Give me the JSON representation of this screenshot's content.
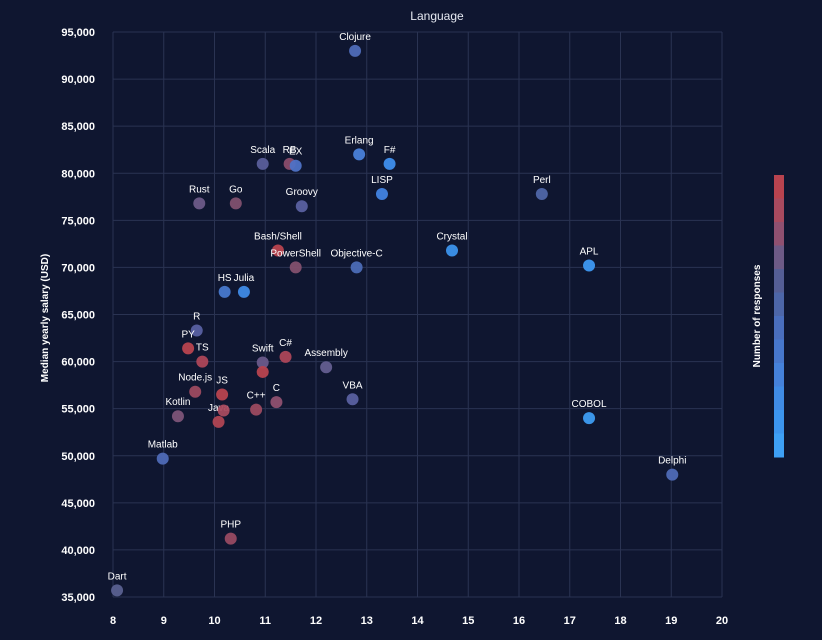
{
  "colors": {
    "background": "#0f1630",
    "grid": "#2a3352",
    "low_responses": "#3ea0f5",
    "high_responses": "#b8434f"
  },
  "chart_data": {
    "type": "scatter",
    "title": "Language",
    "ylabel": "Median yearly salary (USD)",
    "xlabel": "",
    "xlim": [
      8,
      20
    ],
    "ylim": [
      35000,
      95000
    ],
    "x_ticks": [
      "8",
      "9",
      "10",
      "11",
      "12",
      "13",
      "14",
      "15",
      "16",
      "17",
      "18",
      "19",
      "20"
    ],
    "y_ticks": [
      "35,000",
      "40,000",
      "45,000",
      "50,000",
      "55,000",
      "60,000",
      "65,000",
      "70,000",
      "75,000",
      "80,000",
      "85,000",
      "90,000",
      "95,000"
    ],
    "grid": true,
    "colorbar": {
      "label": "Number of responses",
      "colors": [
        "#b8434f",
        "#a84a5f",
        "#8f5070",
        "#6d5a86",
        "#555e95",
        "#4d66a8",
        "#4a6ebd",
        "#4777cc",
        "#4581da",
        "#408be4",
        "#3c95ee",
        "#3ea0f5"
      ]
    },
    "points": [
      {
        "label": "Clojure",
        "x": 12.77,
        "y": 93000,
        "color": "#4f6cb8"
      },
      {
        "label": "Scala",
        "x": 10.95,
        "y": 81000,
        "color": "#5a5e9a"
      },
      {
        "label": "RB",
        "x": 11.48,
        "y": 81000,
        "color": "#8a4c6c"
      },
      {
        "label": "EX",
        "x": 11.6,
        "y": 80800,
        "color": "#4f72c6"
      },
      {
        "label": "Erlang",
        "x": 12.85,
        "y": 82000,
        "color": "#4a7fd8"
      },
      {
        "label": "F#",
        "x": 13.45,
        "y": 81000,
        "color": "#3f8eec"
      },
      {
        "label": "LISP",
        "x": 13.3,
        "y": 77800,
        "color": "#4283e2"
      },
      {
        "label": "Perl",
        "x": 16.45,
        "y": 77800,
        "color": "#5066a8"
      },
      {
        "label": "Rust",
        "x": 9.7,
        "y": 76800,
        "color": "#6d5a88"
      },
      {
        "label": "Go",
        "x": 10.42,
        "y": 76800,
        "color": "#81506f"
      },
      {
        "label": "Groovy",
        "x": 11.72,
        "y": 76500,
        "color": "#5a60a0"
      },
      {
        "label": "Bash/Shell",
        "x": 11.25,
        "y": 71800,
        "color": "#b8434f"
      },
      {
        "label": "PowerShell",
        "x": 11.6,
        "y": 70000,
        "color": "#83506e"
      },
      {
        "label": "Objective-C",
        "x": 12.8,
        "y": 70000,
        "color": "#4c6bb6"
      },
      {
        "label": "Crystal",
        "x": 14.68,
        "y": 71800,
        "color": "#3c92ec"
      },
      {
        "label": "APL",
        "x": 17.38,
        "y": 70200,
        "color": "#3e98f2"
      },
      {
        "label": "HS",
        "x": 10.2,
        "y": 67400,
        "color": "#4878cc"
      },
      {
        "label": "Julia",
        "x": 10.58,
        "y": 67400,
        "color": "#3f8ae6"
      },
      {
        "label": "R",
        "x": 9.65,
        "y": 63300,
        "color": "#5860a2"
      },
      {
        "label": "PY",
        "x": 9.48,
        "y": 61400,
        "color": "#b8434f"
      },
      {
        "label": "TS",
        "x": 9.76,
        "y": 60000,
        "color": "#ad4658"
      },
      {
        "label": "Swift",
        "x": 10.95,
        "y": 59900,
        "color": "#6a5a8a"
      },
      {
        "label": "C#",
        "x": 11.4,
        "y": 60500,
        "color": "#ad4658"
      },
      {
        "label": "Assembly",
        "x": 12.2,
        "y": 59400,
        "color": "#645e90"
      },
      {
        "label": "Node.js",
        "x": 9.62,
        "y": 56800,
        "color": "#9c4a60"
      },
      {
        "label": "JS",
        "x": 10.15,
        "y": 56500,
        "color": "#b8434f"
      },
      {
        "label": "",
        "x": 10.95,
        "y": 58900,
        "color": "#b8434f"
      },
      {
        "label": "Kotlin",
        "x": 9.28,
        "y": 54200,
        "color": "#7d5478"
      },
      {
        "label": "Java",
        "x": 10.08,
        "y": 53600,
        "color": "#b04553"
      },
      {
        "label": "",
        "x": 10.18,
        "y": 54800,
        "color": "#a84a5f"
      },
      {
        "label": "C++",
        "x": 10.82,
        "y": 54900,
        "color": "#9c4a60"
      },
      {
        "label": "C",
        "x": 11.22,
        "y": 55700,
        "color": "#8f5070"
      },
      {
        "label": "VBA",
        "x": 12.72,
        "y": 56000,
        "color": "#5a60a0"
      },
      {
        "label": "COBOL",
        "x": 17.38,
        "y": 54000,
        "color": "#3e9cf2"
      },
      {
        "label": "Matlab",
        "x": 8.98,
        "y": 49700,
        "color": "#4f6ab6"
      },
      {
        "label": "Delphi",
        "x": 19.02,
        "y": 48000,
        "color": "#4f6ab6"
      },
      {
        "label": "PHP",
        "x": 10.32,
        "y": 41200,
        "color": "#984a62"
      },
      {
        "label": "Dart",
        "x": 8.08,
        "y": 35700,
        "color": "#5a6090"
      }
    ]
  }
}
